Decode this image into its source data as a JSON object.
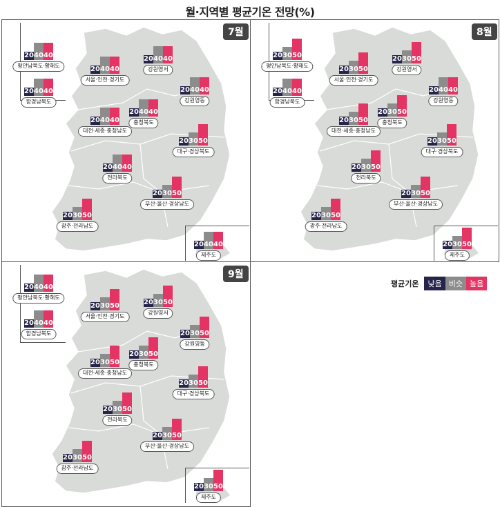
{
  "title": "월·지역별 평균기온 전망(%)",
  "colors": {
    "low": "#25244a",
    "mid": "#8c8c8c",
    "high": "#e33464",
    "land": "#d8dbd8"
  },
  "legend": {
    "title": "평균기온",
    "items": [
      "낮음",
      "비슷",
      "높음"
    ]
  },
  "chart_data": [
    {
      "type": "bar",
      "month": "7월",
      "categories": [
        "낮음",
        "비슷",
        "높음"
      ],
      "regions": [
        {
          "name": "평안남북도·황해도",
          "values": [
            20,
            40,
            40
          ]
        },
        {
          "name": "함경남북도",
          "values": [
            20,
            40,
            40
          ]
        },
        {
          "name": "서울·인천·경기도",
          "values": [
            20,
            40,
            40
          ]
        },
        {
          "name": "강원영서",
          "values": [
            20,
            40,
            40
          ]
        },
        {
          "name": "강원영동",
          "values": [
            20,
            40,
            40
          ]
        },
        {
          "name": "대전·세종·충청남도",
          "values": [
            20,
            40,
            40
          ]
        },
        {
          "name": "충청북도",
          "values": [
            20,
            40,
            40
          ]
        },
        {
          "name": "대구·경상북도",
          "values": [
            20,
            30,
            50
          ]
        },
        {
          "name": "전라북도",
          "values": [
            20,
            40,
            40
          ]
        },
        {
          "name": "부산·울산·경상남도",
          "values": [
            20,
            30,
            50
          ]
        },
        {
          "name": "광주·전라남도",
          "values": [
            20,
            30,
            50
          ]
        },
        {
          "name": "제주도",
          "values": [
            20,
            40,
            40
          ]
        }
      ]
    },
    {
      "type": "bar",
      "month": "8월",
      "categories": [
        "낮음",
        "비슷",
        "높음"
      ],
      "regions": [
        {
          "name": "평안남북도·황해도",
          "values": [
            20,
            30,
            50
          ]
        },
        {
          "name": "함경남북도",
          "values": [
            20,
            40,
            40
          ]
        },
        {
          "name": "서울·인천·경기도",
          "values": [
            20,
            30,
            50
          ]
        },
        {
          "name": "강원영서",
          "values": [
            20,
            30,
            50
          ]
        },
        {
          "name": "강원영동",
          "values": [
            20,
            40,
            40
          ]
        },
        {
          "name": "대전·세종·충청남도",
          "values": [
            20,
            30,
            50
          ]
        },
        {
          "name": "충청북도",
          "values": [
            20,
            30,
            50
          ]
        },
        {
          "name": "대구·경상북도",
          "values": [
            20,
            30,
            50
          ]
        },
        {
          "name": "전라북도",
          "values": [
            20,
            30,
            50
          ]
        },
        {
          "name": "부산·울산·경상남도",
          "values": [
            20,
            30,
            50
          ]
        },
        {
          "name": "광주·전라남도",
          "values": [
            20,
            30,
            50
          ]
        },
        {
          "name": "제주도",
          "values": [
            20,
            30,
            50
          ]
        }
      ]
    },
    {
      "type": "bar",
      "month": "9월",
      "categories": [
        "낮음",
        "비슷",
        "높음"
      ],
      "regions": [
        {
          "name": "평안남북도·황해도",
          "values": [
            20,
            40,
            40
          ]
        },
        {
          "name": "함경남북도",
          "values": [
            20,
            40,
            40
          ]
        },
        {
          "name": "서울·인천·경기도",
          "values": [
            20,
            30,
            50
          ]
        },
        {
          "name": "강원영서",
          "values": [
            20,
            30,
            50
          ]
        },
        {
          "name": "강원영동",
          "values": [
            20,
            30,
            50
          ]
        },
        {
          "name": "대전·세종·충청남도",
          "values": [
            20,
            30,
            50
          ]
        },
        {
          "name": "충청북도",
          "values": [
            20,
            30,
            50
          ]
        },
        {
          "name": "대구·경상북도",
          "values": [
            20,
            30,
            50
          ]
        },
        {
          "name": "전라북도",
          "values": [
            20,
            30,
            50
          ]
        },
        {
          "name": "부산·울산·경상남도",
          "values": [
            20,
            30,
            50
          ]
        },
        {
          "name": "광주·전라남도",
          "values": [
            20,
            30,
            50
          ]
        },
        {
          "name": "제주도",
          "values": [
            20,
            30,
            50
          ]
        }
      ]
    }
  ]
}
